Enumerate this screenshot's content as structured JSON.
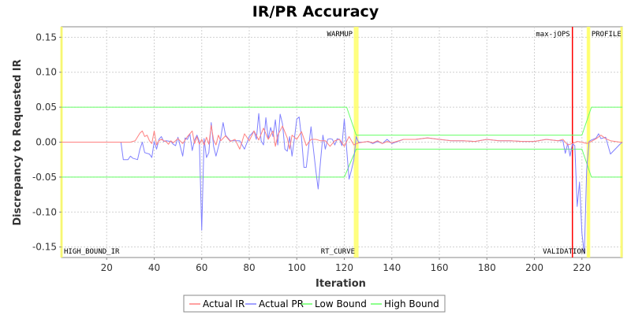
{
  "chart_data": {
    "type": "line",
    "title": "IR/PR Accuracy",
    "xlabel": "Iteration",
    "ylabel": "Discrepancy to Requested IR",
    "xlim": [
      1,
      237
    ],
    "ylim": [
      -0.165,
      0.165
    ],
    "x_ticks": [
      20,
      40,
      60,
      80,
      100,
      120,
      140,
      160,
      180,
      200,
      220
    ],
    "y_ticks": [
      -0.15,
      -0.1,
      -0.05,
      0.0,
      0.05,
      0.1,
      0.15
    ],
    "y_tick_labels": [
      "-0.15",
      "-0.10",
      "-0.05",
      "0.00",
      "0.05",
      "0.10",
      "0.15"
    ],
    "grid": true,
    "legend_position": "bottom",
    "vertical_markers": [
      {
        "label": "HIGH_BOUND_IR",
        "x": 1,
        "color": "#ffff66",
        "label_position": "bottom-right"
      },
      {
        "label": "WARMUP",
        "x": 124.5,
        "color": "#ffff66",
        "label_position": "top-left"
      },
      {
        "label": "RT_CURVE",
        "x": 125.5,
        "color": "#ffff66",
        "label_position": "bottom-left"
      },
      {
        "label": "max-jOPS",
        "x": 216,
        "color": "#ff0000",
        "label_position": "top-left"
      },
      {
        "label": "VALIDATION",
        "x": 222.5,
        "color": "#ffff66",
        "label_position": "bottom-left"
      },
      {
        "label": "PROFILE",
        "x": 223,
        "color": "#ffff66",
        "label_position": "top-right"
      }
    ],
    "end_marker": {
      "x": 237,
      "color": "#ffff66"
    },
    "series": [
      {
        "name": "Actual IR",
        "color": "#ff8080",
        "points": [
          [
            1,
            0
          ],
          [
            26,
            0
          ],
          [
            28,
            0
          ],
          [
            30,
            0
          ],
          [
            32,
            0.002
          ],
          [
            34,
            0.013
          ],
          [
            35,
            0.016
          ],
          [
            36,
            0.008
          ],
          [
            37,
            0.01
          ],
          [
            38,
            0.002
          ],
          [
            39,
            -0.002
          ],
          [
            40,
            0.016
          ],
          [
            41,
            -0.004
          ],
          [
            42,
            0.002
          ],
          [
            43,
            0.004
          ],
          [
            44,
            0.002
          ],
          [
            45,
            0.001
          ],
          [
            46,
            -0.003
          ],
          [
            47,
            0.002
          ],
          [
            48,
            -0.001
          ],
          [
            50,
            0.005
          ],
          [
            52,
            -0.002
          ],
          [
            54,
            0.008
          ],
          [
            56,
            0.016
          ],
          [
            57,
            -0.002
          ],
          [
            58,
            0.008
          ],
          [
            59,
            -0.003
          ],
          [
            60,
            0.004
          ],
          [
            61,
            -0.004
          ],
          [
            62,
            0.007
          ],
          [
            63,
            -0.003
          ],
          [
            64,
            0.024
          ],
          [
            65,
            0.003
          ],
          [
            66,
            -0.004
          ],
          [
            67,
            0.01
          ],
          [
            68,
            0.002
          ],
          [
            70,
            0.009
          ],
          [
            72,
            0.001
          ],
          [
            74,
            0.004
          ],
          [
            76,
            -0.01
          ],
          [
            78,
            0.012
          ],
          [
            80,
            0.002
          ],
          [
            82,
            0.016
          ],
          [
            84,
            0.003
          ],
          [
            86,
            0.02
          ],
          [
            88,
            0.004
          ],
          [
            90,
            0.016
          ],
          [
            91,
            -0.006
          ],
          [
            92,
            0.01
          ],
          [
            94,
            0.023
          ],
          [
            96,
            0.006
          ],
          [
            97,
            -0.01
          ],
          [
            98,
            0.01
          ],
          [
            100,
            0.004
          ],
          [
            102,
            0.015
          ],
          [
            104,
            -0.005
          ],
          [
            106,
            0.004
          ],
          [
            108,
            0.004
          ],
          [
            110,
            0.002
          ],
          [
            112,
            0.002
          ],
          [
            114,
            -0.006
          ],
          [
            116,
            0.002
          ],
          [
            118,
            0.004
          ],
          [
            120,
            -0.006
          ],
          [
            122,
            0.008
          ],
          [
            124,
            -0.004
          ],
          [
            126,
            -0.001
          ],
          [
            128,
            0
          ],
          [
            130,
            0.001
          ],
          [
            132,
            -0.001
          ],
          [
            134,
            0.002
          ],
          [
            136,
            -0.002
          ],
          [
            138,
            0.001
          ],
          [
            140,
            -0.001
          ],
          [
            145,
            0.004
          ],
          [
            150,
            0.004
          ],
          [
            155,
            0.006
          ],
          [
            160,
            0.004
          ],
          [
            165,
            0.002
          ],
          [
            170,
            0.002
          ],
          [
            175,
            0.001
          ],
          [
            180,
            0.004
          ],
          [
            185,
            0.002
          ],
          [
            190,
            0.002
          ],
          [
            195,
            0.001
          ],
          [
            200,
            0.001
          ],
          [
            205,
            0.004
          ],
          [
            210,
            0.002
          ],
          [
            212,
            0.004
          ],
          [
            214,
            -0.004
          ],
          [
            216,
            -0.002
          ],
          [
            218,
            0.001
          ],
          [
            220,
            0
          ],
          [
            222,
            -0.002
          ],
          [
            224,
            0.001
          ],
          [
            226,
            0.005
          ],
          [
            228,
            0.01
          ],
          [
            230,
            0.005
          ],
          [
            232,
            0.002
          ],
          [
            234,
            0.001
          ],
          [
            236,
            0
          ],
          [
            237,
            0
          ]
        ]
      },
      {
        "name": "Actual PR",
        "color": "#8080ff",
        "points": [
          [
            1,
            0
          ],
          [
            26,
            0
          ],
          [
            27,
            -0.025
          ],
          [
            29,
            -0.025
          ],
          [
            30,
            -0.02
          ],
          [
            31,
            -0.023
          ],
          [
            33,
            -0.025
          ],
          [
            34,
            -0.01
          ],
          [
            35,
            0
          ],
          [
            36,
            -0.015
          ],
          [
            38,
            -0.017
          ],
          [
            39,
            -0.022
          ],
          [
            40,
            0.001
          ],
          [
            41,
            -0.01
          ],
          [
            42,
            0.004
          ],
          [
            43,
            0.008
          ],
          [
            44,
            0.001
          ],
          [
            45,
            0.002
          ],
          [
            47,
            0.001
          ],
          [
            48,
            -0.003
          ],
          [
            49,
            -0.005
          ],
          [
            50,
            0.007
          ],
          [
            52,
            -0.02
          ],
          [
            53,
            0.006
          ],
          [
            54,
            0.004
          ],
          [
            55,
            0.012
          ],
          [
            56,
            -0.012
          ],
          [
            57,
            0.003
          ],
          [
            58,
            0.01
          ],
          [
            59,
            0.001
          ],
          [
            60,
            -0.126
          ],
          [
            61,
            0.005
          ],
          [
            62,
            -0.022
          ],
          [
            63,
            -0.015
          ],
          [
            64,
            0.028
          ],
          [
            65,
            -0.006
          ],
          [
            66,
            -0.02
          ],
          [
            68,
            0.006
          ],
          [
            69,
            0.028
          ],
          [
            70,
            0.01
          ],
          [
            72,
            0.002
          ],
          [
            74,
            0.002
          ],
          [
            76,
            0.002
          ],
          [
            78,
            -0.01
          ],
          [
            80,
            0.008
          ],
          [
            82,
            0.016
          ],
          [
            83,
            0.004
          ],
          [
            84,
            0.041
          ],
          [
            85,
            0.002
          ],
          [
            86,
            -0.004
          ],
          [
            87,
            0.035
          ],
          [
            88,
            0.005
          ],
          [
            89,
            0.021
          ],
          [
            90,
            0.008
          ],
          [
            91,
            0.032
          ],
          [
            92,
            -0.004
          ],
          [
            93,
            0.04
          ],
          [
            94,
            0.026
          ],
          [
            95,
            -0.01
          ],
          [
            96,
            -0.013
          ],
          [
            97,
            0.008
          ],
          [
            98,
            -0.02
          ],
          [
            99,
            0.005
          ],
          [
            100,
            0.033
          ],
          [
            101,
            0.036
          ],
          [
            102,
            0.006
          ],
          [
            103,
            -0.036
          ],
          [
            104,
            -0.036
          ],
          [
            105,
            -0.007
          ],
          [
            106,
            0.022
          ],
          [
            107,
            -0.01
          ],
          [
            108,
            -0.04
          ],
          [
            109,
            -0.067
          ],
          [
            110,
            -0.027
          ],
          [
            111,
            0.01
          ],
          [
            112,
            -0.01
          ],
          [
            113,
            0.004
          ],
          [
            114,
            0.005
          ],
          [
            115,
            0.004
          ],
          [
            116,
            -0.004
          ],
          [
            117,
            0.005
          ],
          [
            118,
            0.004
          ],
          [
            119,
            -0.005
          ],
          [
            120,
            0.033
          ],
          [
            121,
            -0.01
          ],
          [
            122,
            -0.053
          ],
          [
            123,
            -0.04
          ],
          [
            124,
            -0.025
          ],
          [
            125,
            0.008
          ],
          [
            126,
            0
          ],
          [
            128,
            0
          ],
          [
            130,
            0.001
          ],
          [
            132,
            -0.002
          ],
          [
            134,
            0.001
          ],
          [
            136,
            -0.002
          ],
          [
            138,
            0.004
          ],
          [
            140,
            -0.002
          ],
          [
            145,
            0.004
          ],
          [
            150,
            0.004
          ],
          [
            155,
            0.006
          ],
          [
            160,
            0.004
          ],
          [
            165,
            0.002
          ],
          [
            170,
            0.002
          ],
          [
            175,
            0.001
          ],
          [
            180,
            0.004
          ],
          [
            185,
            0.002
          ],
          [
            190,
            0.002
          ],
          [
            195,
            0.001
          ],
          [
            200,
            0.001
          ],
          [
            205,
            0.004
          ],
          [
            210,
            0.002
          ],
          [
            212,
            0.002
          ],
          [
            213,
            -0.016
          ],
          [
            214,
            -0.002
          ],
          [
            215,
            -0.02
          ],
          [
            216,
            -0.002
          ],
          [
            217,
            -0.005
          ],
          [
            218,
            -0.092
          ],
          [
            219,
            -0.057
          ],
          [
            220,
            -0.13
          ],
          [
            221,
            -0.16
          ],
          [
            222,
            -0.04
          ],
          [
            223,
            0.001
          ],
          [
            224,
            0.003
          ],
          [
            226,
            0.006
          ],
          [
            227,
            0.012
          ],
          [
            228,
            0.005
          ],
          [
            230,
            0.007
          ],
          [
            232,
            -0.017
          ],
          [
            234,
            -0.01
          ],
          [
            236,
            -0.003
          ],
          [
            237,
            0
          ]
        ]
      },
      {
        "name": "Low Bound",
        "color": "#66ff66",
        "points": [
          [
            1,
            -0.05
          ],
          [
            120,
            -0.05
          ],
          [
            125,
            -0.01
          ],
          [
            220,
            -0.01
          ],
          [
            224,
            -0.05
          ],
          [
            237,
            -0.05
          ]
        ]
      },
      {
        "name": "High Bound",
        "color": "#66ff66",
        "points": [
          [
            1,
            0.05
          ],
          [
            121,
            0.05
          ],
          [
            125,
            0.01
          ],
          [
            220,
            0.01
          ],
          [
            224,
            0.05
          ],
          [
            237,
            0.05
          ]
        ]
      }
    ]
  }
}
